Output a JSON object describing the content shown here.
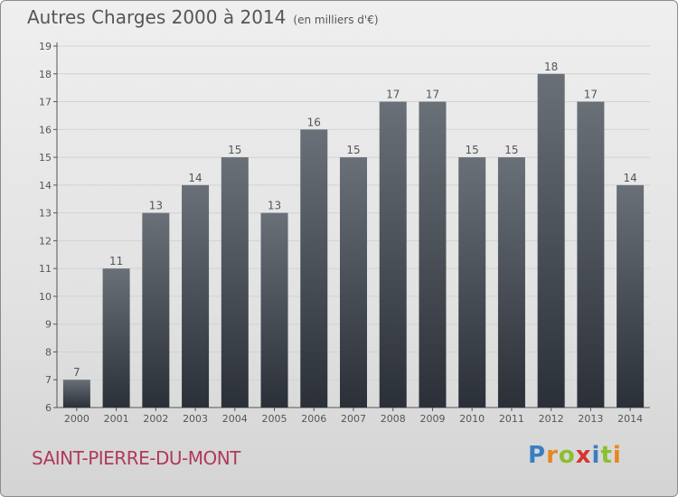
{
  "title": "Autres Charges 2000 à 2014",
  "unit_label": "(en milliers d'€)",
  "commune": "SAINT-PIERRE-DU-MONT",
  "logo": {
    "letters": [
      "P",
      "r",
      "o",
      "x",
      "i",
      "t",
      "i"
    ],
    "colors": [
      "#3a7fc1",
      "#e8871e",
      "#8bbf2e",
      "#d6352f",
      "#3a7fc1",
      "#8bbf2e",
      "#e8871e"
    ]
  },
  "colors": {
    "bar_top": "#6a7078",
    "bar_bottom": "#2b3038",
    "axis": "#555555",
    "text": "#555555",
    "grid": "#d2d2d2"
  },
  "chart_data": {
    "type": "bar",
    "title": "Autres Charges 2000 à 2014",
    "subtitle": "(en milliers d'€)",
    "xlabel": "",
    "ylabel": "",
    "categories": [
      "2000",
      "2001",
      "2002",
      "2003",
      "2004",
      "2005",
      "2006",
      "2007",
      "2008",
      "2009",
      "2010",
      "2011",
      "2012",
      "2013",
      "2014"
    ],
    "values": [
      7,
      11,
      13,
      14,
      15,
      13,
      16,
      15,
      17,
      17,
      15,
      15,
      18,
      17,
      14
    ],
    "ylim": [
      6,
      19
    ],
    "yticks": [
      6,
      7,
      8,
      9,
      10,
      11,
      12,
      13,
      14,
      15,
      16,
      17,
      18,
      19
    ],
    "grid": true,
    "legend": "none"
  }
}
